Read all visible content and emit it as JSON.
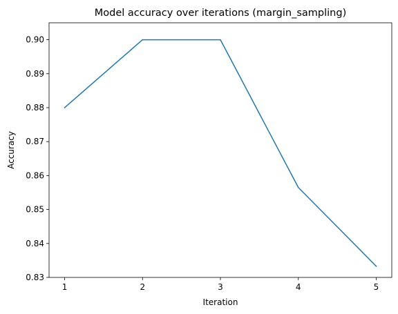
{
  "chart_data": {
    "type": "line",
    "title": "Model accuracy over iterations (margin_sampling)",
    "xlabel": "Iteration",
    "ylabel": "Accuracy",
    "x": [
      1,
      2,
      3,
      4,
      5
    ],
    "series": [
      {
        "values": [
          0.88,
          0.9,
          0.9,
          0.8565,
          0.8333
        ],
        "color": "#1f77b4"
      }
    ],
    "xlim": [
      0.8,
      5.2
    ],
    "ylim": [
      0.83,
      0.905
    ],
    "x_ticks": [
      1,
      2,
      3,
      4,
      5
    ],
    "y_ticks": [
      0.83,
      0.84,
      0.85,
      0.86,
      0.87,
      0.88,
      0.89,
      0.9
    ],
    "y_tick_labels": [
      "0.83",
      "0.84",
      "0.85",
      "0.86",
      "0.87",
      "0.88",
      "0.89",
      "0.90"
    ],
    "grid": false,
    "legend": "none"
  }
}
